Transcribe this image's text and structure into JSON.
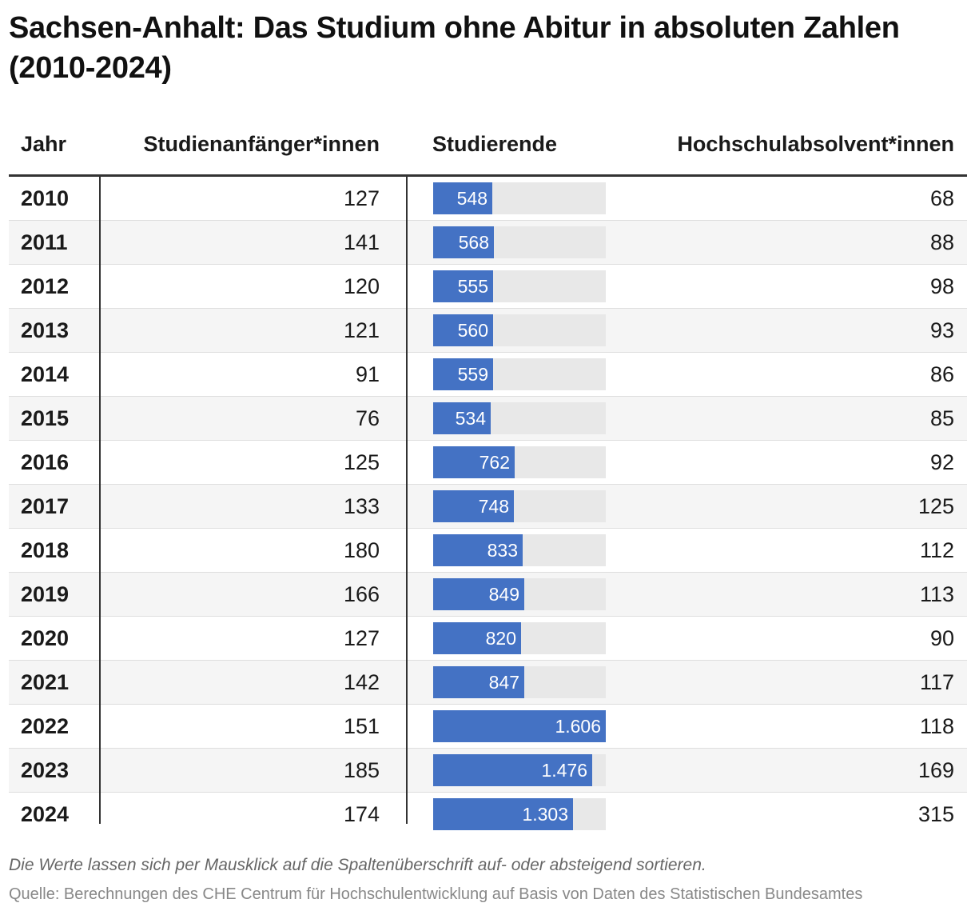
{
  "title": "Sachsen-Anhalt: Das Studium ohne Abitur in absoluten Zahlen (2010-2024)",
  "headers": {
    "year": "Jahr",
    "anfaenger": "Studienanfänger*innen",
    "studierende": "Studierende",
    "absolventen": "Hochschulabsolvent*innen"
  },
  "rows": [
    {
      "year": "2010",
      "anfaenger": "127",
      "studierende": "548",
      "absolventen": "68"
    },
    {
      "year": "2011",
      "anfaenger": "141",
      "studierende": "568",
      "absolventen": "88"
    },
    {
      "year": "2012",
      "anfaenger": "120",
      "studierende": "555",
      "absolventen": "98"
    },
    {
      "year": "2013",
      "anfaenger": "121",
      "studierende": "560",
      "absolventen": "93"
    },
    {
      "year": "2014",
      "anfaenger": "91",
      "studierende": "559",
      "absolventen": "86"
    },
    {
      "year": "2015",
      "anfaenger": "76",
      "studierende": "534",
      "absolventen": "85"
    },
    {
      "year": "2016",
      "anfaenger": "125",
      "studierende": "762",
      "absolventen": "92"
    },
    {
      "year": "2017",
      "anfaenger": "133",
      "studierende": "748",
      "absolventen": "125"
    },
    {
      "year": "2018",
      "anfaenger": "180",
      "studierende": "833",
      "absolventen": "112"
    },
    {
      "year": "2019",
      "anfaenger": "166",
      "studierende": "849",
      "absolventen": "113"
    },
    {
      "year": "2020",
      "anfaenger": "127",
      "studierende": "820",
      "absolventen": "90"
    },
    {
      "year": "2021",
      "anfaenger": "142",
      "studierende": "847",
      "absolventen": "117"
    },
    {
      "year": "2022",
      "anfaenger": "151",
      "studierende": "1.606",
      "absolventen": "118"
    },
    {
      "year": "2023",
      "anfaenger": "185",
      "studierende": "1.476",
      "absolventen": "169"
    },
    {
      "year": "2024",
      "anfaenger": "174",
      "studierende": "1.303",
      "absolventen": "315"
    }
  ],
  "note": "Die Werte lassen sich per Mausklick auf die Spaltenüberschrift auf- oder absteigend sortieren.",
  "source": "Quelle: Berechnungen des CHE Centrum für Hochschulentwicklung auf Basis von Daten des Statistischen Bundesamtes",
  "colors": {
    "bar": "#4472c4",
    "track": "#e8e8e8",
    "row_alt": "#f5f5f5"
  },
  "chart_data": {
    "type": "table",
    "title": "Sachsen-Anhalt: Das Studium ohne Abitur in absoluten Zahlen (2010-2024)",
    "columns": [
      "Jahr",
      "Studienanfänger*innen",
      "Studierende",
      "Hochschulabsolvent*innen"
    ],
    "categories": [
      "2010",
      "2011",
      "2012",
      "2013",
      "2014",
      "2015",
      "2016",
      "2017",
      "2018",
      "2019",
      "2020",
      "2021",
      "2022",
      "2023",
      "2024"
    ],
    "series": [
      {
        "name": "Studienanfänger*innen",
        "values": [
          127,
          141,
          120,
          121,
          91,
          76,
          125,
          133,
          180,
          166,
          127,
          142,
          151,
          185,
          174
        ]
      },
      {
        "name": "Studierende",
        "values": [
          548,
          568,
          555,
          560,
          559,
          534,
          762,
          748,
          833,
          849,
          820,
          847,
          1606,
          1476,
          1303
        ]
      },
      {
        "name": "Hochschulabsolvent*innen",
        "values": [
          68,
          88,
          98,
          93,
          86,
          85,
          92,
          125,
          112,
          113,
          90,
          117,
          118,
          169,
          315
        ]
      }
    ],
    "bar_column": "Studierende",
    "bar_max": 1606
  }
}
